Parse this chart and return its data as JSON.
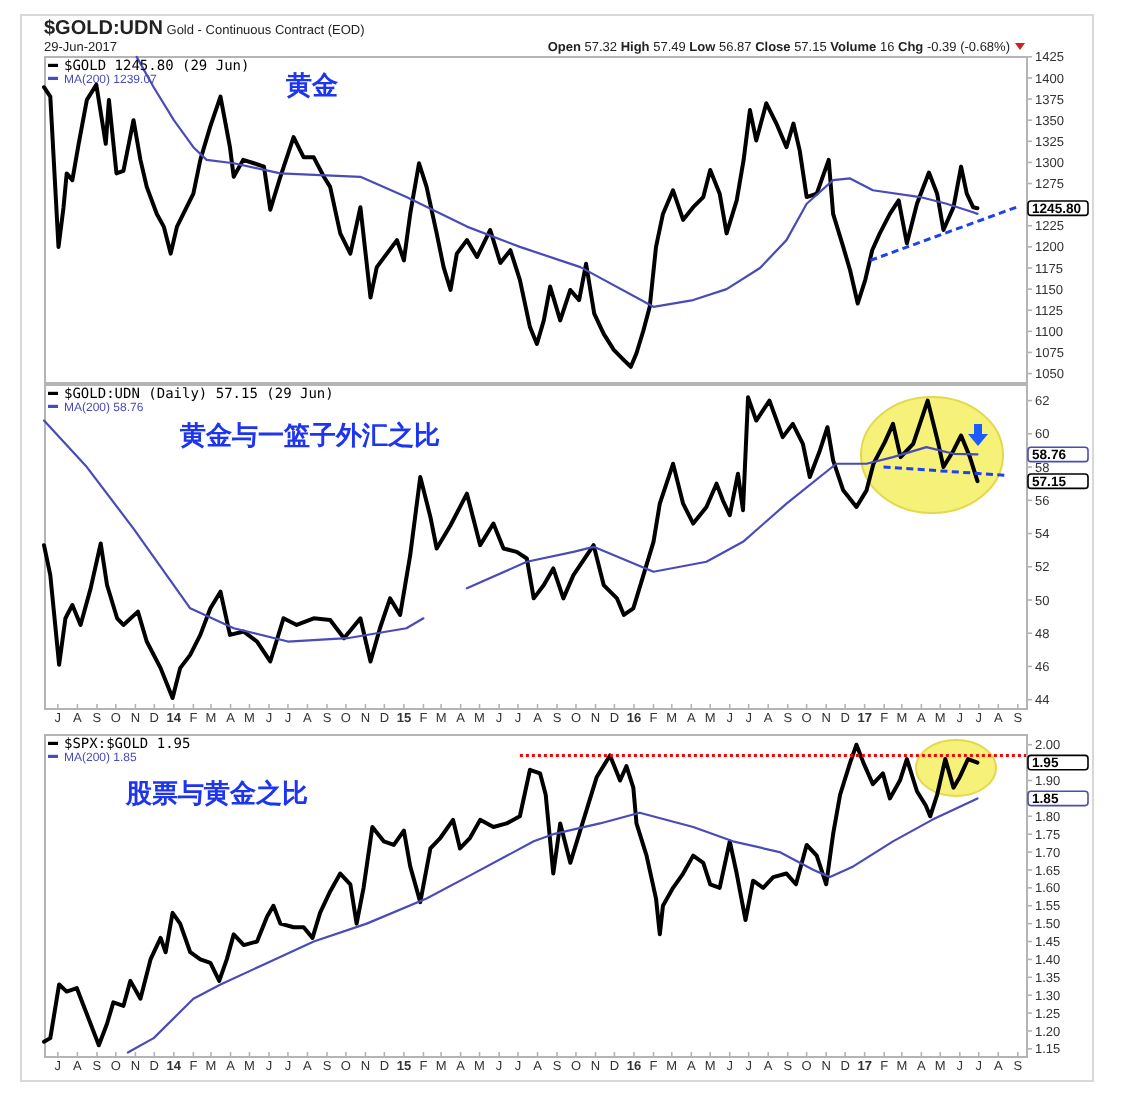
{
  "chart_data": [
    {
      "type": "line",
      "title": "黄金",
      "xlim": [
        "2013-06-09",
        "2017-09-14"
      ],
      "ylim": [
        1040,
        1426
      ],
      "yticks": [
        1050,
        1075,
        1100,
        1125,
        1150,
        1175,
        1200,
        1225,
        {
          "value": 1250,
          "label": null
        },
        1275,
        1300,
        1325,
        1350,
        1375,
        1400,
        1425
      ],
      "tick_labels": "y",
      "legend": "top left",
      "annotations": [
        "**$GOLD:UDN** Gold - Continuous Contract (EOD)",
        "29-Jun-2017",
        "**Open** 57.32 **High** 57.49 **Low** 56.87 **Close** 57.15 **Volume** 16 **Chg** -0.39 (-0.68%)",
        "1245.80"
      ],
      "series": [
        {
          "name": "$GOLD 1245.80 (29 Jun)",
          "color": "#000000",
          "x": [
            "2013-06-09",
            "2013-06-19",
            "2013-07-02",
            "2013-07-10",
            "2013-07-15",
            "2013-07-24",
            "2013-08-03",
            "2013-08-16",
            "2013-08-31",
            "2013-09-15",
            "2013-09-20",
            "2013-10-02",
            "2013-10-13",
            "2013-10-29",
            "2013-11-09",
            "2013-11-19",
            "2013-12-05",
            "2013-12-16",
            "2013-12-27",
            "2014-01-06",
            "2014-01-16",
            "2014-02-01",
            "2014-02-12",
            "2014-02-28",
            "2014-03-16",
            "2014-03-31",
            "2014-04-06",
            "2014-04-21",
            "2014-05-08",
            "2014-05-24",
            "2014-06-03",
            "2014-06-19",
            "2014-07-10",
            "2014-07-26",
            "2014-08-11",
            "2014-08-27",
            "2014-09-06",
            "2014-09-22",
            "2014-10-08",
            "2014-10-24",
            "2014-11-09",
            "2014-11-19",
            "2014-12-05",
            "2014-12-21",
            "2015-01-01",
            "2015-01-11",
            "2015-01-25",
            "2015-02-06",
            "2015-02-22",
            "2015-03-05",
            "2015-03-16",
            "2015-03-26",
            "2015-04-11",
            "2015-04-27",
            "2015-05-18",
            "2015-06-03",
            "2015-06-19",
            "2015-07-04",
            "2015-07-20",
            "2015-07-31",
            "2015-08-11",
            "2015-08-21",
            "2015-09-06",
            "2015-09-22",
            "2015-10-06",
            "2015-10-17",
            "2015-10-30",
            "2015-11-14",
            "2015-11-30",
            "2015-12-16",
            "2015-12-27",
            "2016-01-05",
            "2016-01-16",
            "2016-01-26",
            "2016-02-05",
            "2016-02-16",
            "2016-03-03",
            "2016-03-19",
            "2016-04-04",
            "2016-04-20",
            "2016-05-01",
            "2016-05-16",
            "2016-05-27",
            "2016-06-12",
            "2016-06-23",
            "2016-07-03",
            "2016-07-13",
            "2016-07-29",
            "2016-08-14",
            "2016-08-30",
            "2016-09-10",
            "2016-09-20",
            "2016-10-01",
            "2016-10-17",
            "2016-11-05",
            "2016-11-12",
            "2016-11-28",
            "2016-12-09",
            "2016-12-21",
            "2017-01-02",
            "2017-01-13",
            "2017-01-25",
            "2017-02-10",
            "2017-02-24",
            "2017-03-09",
            "2017-03-25",
            "2017-04-13",
            "2017-04-26",
            "2017-05-06",
            "2017-05-22",
            "2017-06-03",
            "2017-06-12",
            "2017-06-22",
            "2017-06-29"
          ],
          "values": [
            1389,
            1378,
            1200,
            1247,
            1287,
            1279,
            1322,
            1374,
            1392,
            1322,
            1374,
            1287,
            1290,
            1350,
            1303,
            1271,
            1239,
            1224,
            1192,
            1224,
            1239,
            1263,
            1303,
            1343,
            1378,
            1318,
            1283,
            1303,
            1299,
            1295,
            1244,
            1283,
            1330,
            1306,
            1306,
            1283,
            1271,
            1216,
            1192,
            1247,
            1140,
            1176,
            1192,
            1208,
            1184,
            1239,
            1299,
            1271,
            1216,
            1176,
            1149,
            1192,
            1208,
            1188,
            1220,
            1181,
            1196,
            1161,
            1105,
            1085,
            1113,
            1153,
            1113,
            1149,
            1137,
            1180,
            1121,
            1097,
            1078,
            1066,
            1058,
            1074,
            1101,
            1129,
            1200,
            1239,
            1267,
            1232,
            1247,
            1259,
            1291,
            1263,
            1216,
            1255,
            1303,
            1362,
            1326,
            1370,
            1346,
            1318,
            1346,
            1314,
            1259,
            1263,
            1303,
            1239,
            1200,
            1172,
            1133,
            1161,
            1196,
            1216,
            1239,
            1255,
            1204,
            1251,
            1288,
            1263,
            1220,
            1247,
            1295,
            1263,
            1247,
            1245.8
          ]
        },
        {
          "name": "MA(200) 1239.07",
          "color": "#4a4ab8",
          "x": [
            "2013-11-03",
            "2013-11-30",
            "2014-01-01",
            "2014-02-01",
            "2014-02-22",
            "2014-04-06",
            "2014-06-19",
            "2014-10-24",
            "2015-01-05",
            "2015-04-11",
            "2015-07-04",
            "2015-09-06",
            "2015-10-08",
            "2016-02-01",
            "2016-04-04",
            "2016-05-27",
            "2016-07-19",
            "2016-08-30",
            "2016-10-01",
            "2016-11-12",
            "2016-12-09",
            "2017-01-14",
            "2017-03-30",
            "2017-05-11",
            "2017-06-22",
            "2017-06-29"
          ],
          "values": [
            1425,
            1389,
            1350,
            1318,
            1303,
            1299,
            1287,
            1283,
            1259,
            1224,
            1200,
            1184,
            1176,
            1129,
            1137,
            1150,
            1175,
            1208,
            1251,
            1279,
            1281,
            1267,
            1259,
            1251,
            1241,
            1239.07
          ]
        },
        {
          "color": "#1f3ff0",
          "line_style": "dashed",
          "x": [
            "2017-01-10",
            "2017-08-30"
          ],
          "values": [
            1184,
            1247
          ]
        }
      ]
    },
    {
      "type": "line",
      "title": "黄金与一篮子外汇之比",
      "xlim": [
        "2013-06-09",
        "2017-09-14"
      ],
      "ylim": [
        43.5,
        63
      ],
      "yticks": [
        44,
        46,
        48,
        50,
        52,
        54,
        56,
        58,
        60,
        62
      ],
      "legend": "top left",
      "xticks": [
        {
          "value": "2013-07",
          "label": "J"
        },
        {
          "value": "2013-08",
          "label": "A"
        },
        {
          "value": "2013-09",
          "label": "S"
        },
        {
          "value": "2013-10",
          "label": "O"
        },
        {
          "value": "2013-11",
          "label": "N"
        },
        {
          "value": "2013-12",
          "label": "D"
        },
        {
          "value": "2014-01",
          "label": "14"
        },
        {
          "value": "2014-02",
          "label": "F"
        },
        {
          "value": "2014-03",
          "label": "M"
        },
        {
          "value": "2014-04",
          "label": "A"
        },
        {
          "value": "2014-05",
          "label": "M"
        },
        {
          "value": "2014-06",
          "label": "J"
        },
        {
          "value": "2014-07",
          "label": "J"
        },
        {
          "value": "2014-08",
          "label": "A"
        },
        {
          "value": "2014-09",
          "label": "S"
        },
        {
          "value": "2014-10",
          "label": "O"
        },
        {
          "value": "2014-11",
          "label": "N"
        },
        {
          "value": "2014-12",
          "label": "D"
        },
        {
          "value": "2015-01",
          "label": "15"
        },
        {
          "value": "2015-02",
          "label": "F"
        },
        {
          "value": "2015-03",
          "label": "M"
        },
        {
          "value": "2015-04",
          "label": "A"
        },
        {
          "value": "2015-05",
          "label": "M"
        },
        {
          "value": "2015-06",
          "label": "J"
        },
        {
          "value": "2015-07",
          "label": "J"
        },
        {
          "value": "2015-08",
          "label": "A"
        },
        {
          "value": "2015-09",
          "label": "S"
        },
        {
          "value": "2015-10",
          "label": "O"
        },
        {
          "value": "2015-11",
          "label": "N"
        },
        {
          "value": "2015-12",
          "label": "D"
        },
        {
          "value": "2016-01",
          "label": "16"
        },
        {
          "value": "2016-02",
          "label": "F"
        },
        {
          "value": "2016-03",
          "label": "M"
        },
        {
          "value": "2016-04",
          "label": "A"
        },
        {
          "value": "2016-05",
          "label": "M"
        },
        {
          "value": "2016-06",
          "label": "J"
        },
        {
          "value": "2016-07",
          "label": "J"
        },
        {
          "value": "2016-08",
          "label": "A"
        },
        {
          "value": "2016-09",
          "label": "S"
        },
        {
          "value": "2016-10",
          "label": "O"
        },
        {
          "value": "2016-11",
          "label": "N"
        },
        {
          "value": "2016-12",
          "label": "D"
        },
        {
          "value": "2017-01",
          "label": "17"
        },
        {
          "value": "2017-02",
          "label": "F"
        },
        {
          "value": "2017-03",
          "label": "M"
        },
        {
          "value": "2017-04",
          "label": "A"
        },
        {
          "value": "2017-05",
          "label": "M"
        },
        {
          "value": "2017-06",
          "label": "J"
        },
        {
          "value": "2017-07",
          "label": "J"
        },
        {
          "value": "2017-08",
          "label": "A"
        },
        {
          "value": "2017-09",
          "label": "S"
        }
      ],
      "annotations": [
        "58.76",
        "57.15"
      ],
      "series": [
        {
          "name": "$GOLD:UDN (Daily) 57.15 (29 Jun)",
          "color": "#000000",
          "x": [
            "2013-06-09",
            "2013-06-19",
            "2013-07-03",
            "2013-07-13",
            "2013-07-24",
            "2013-08-06",
            "2013-08-22",
            "2013-09-07",
            "2013-09-17",
            "2013-10-03",
            "2013-10-13",
            "2013-11-05",
            "2013-11-19",
            "2013-12-11",
            "2013-12-30",
            "2014-01-11",
            "2014-01-27",
            "2014-02-12",
            "2014-02-28",
            "2014-03-16",
            "2014-03-31",
            "2014-04-22",
            "2014-05-13",
            "2014-06-03",
            "2014-06-24",
            "2014-07-15",
            "2014-08-11",
            "2014-09-06",
            "2014-09-28",
            "2014-10-24",
            "2014-11-09",
            "2014-11-24",
            "2014-12-10",
            "2014-12-26",
            "2015-01-11",
            "2015-01-27",
            "2015-02-12",
            "2015-02-22",
            "2015-03-16",
            "2015-04-11",
            "2015-05-02",
            "2015-05-23",
            "2015-06-08",
            "2015-06-29",
            "2015-07-15",
            "2015-07-26",
            "2015-08-11",
            "2015-08-26",
            "2015-09-11",
            "2015-09-27",
            "2015-10-29",
            "2015-11-14",
            "2015-12-05",
            "2015-12-16",
            "2015-12-31",
            "2016-01-16",
            "2016-02-01",
            "2016-02-11",
            "2016-03-03",
            "2016-03-19",
            "2016-04-04",
            "2016-04-25",
            "2016-05-11",
            "2016-05-21",
            "2016-06-01",
            "2016-06-14",
            "2016-06-22",
            "2016-06-30",
            "2016-07-13",
            "2016-08-03",
            "2016-08-24",
            "2016-09-09",
            "2016-09-25",
            "2016-10-06",
            "2016-10-22",
            "2016-11-03",
            "2016-11-12",
            "2016-11-28",
            "2016-12-19",
            "2017-01-04",
            "2017-01-15",
            "2017-02-02",
            "2017-02-15",
            "2017-02-27",
            "2017-03-19",
            "2017-04-11",
            "2017-04-28",
            "2017-05-06",
            "2017-05-22",
            "2017-06-03",
            "2017-06-17",
            "2017-06-29"
          ],
          "values": [
            53.3,
            51.5,
            46.1,
            48.9,
            49.7,
            48.5,
            50.7,
            53.4,
            50.9,
            48.9,
            48.5,
            49.3,
            47.5,
            45.9,
            44.1,
            45.9,
            46.7,
            47.9,
            49.5,
            50.5,
            47.9,
            48.1,
            47.5,
            46.3,
            48.9,
            48.5,
            48.9,
            48.8,
            47.7,
            48.9,
            46.3,
            48.3,
            50.1,
            49.1,
            52.7,
            57.4,
            55.0,
            53.1,
            54.5,
            56.4,
            53.3,
            54.6,
            53.1,
            52.9,
            52.5,
            50.1,
            50.9,
            51.9,
            50.1,
            51.5,
            53.3,
            50.9,
            50.1,
            49.1,
            49.5,
            51.5,
            53.5,
            55.8,
            58.2,
            55.8,
            54.6,
            55.6,
            57.0,
            56.0,
            55.1,
            57.6,
            55.4,
            62.2,
            60.8,
            62.0,
            59.8,
            60.6,
            59.4,
            57.4,
            59.0,
            60.4,
            58.4,
            56.6,
            55.6,
            56.6,
            58.2,
            59.5,
            60.6,
            58.6,
            59.4,
            62.0,
            59.4,
            58.0,
            59.0,
            59.9,
            58.6,
            57.15
          ]
        },
        {
          "name": "MA(200) 58.76",
          "color": "#4a4ab8",
          "x": [
            "2015-04-11",
            "2015-07-15",
            "2015-09-27",
            "2015-10-29",
            "2016-02-01",
            "2016-04-25",
            "2016-06-22",
            "2016-08-30",
            "2016-11-17",
            "2017-01-04",
            "2017-02-15",
            "2017-04-09",
            "2017-05-22",
            "2017-06-29"
          ],
          "values": [
            50.7,
            52.3,
            52.9,
            53.2,
            51.7,
            52.3,
            53.5,
            55.8,
            58.2,
            58.2,
            58.6,
            59.2,
            58.8,
            58.76
          ]
        },
        {
          "color": "#4a4ab8",
          "x": [
            "2013-06-09",
            "2013-08-16",
            "2013-10-29",
            "2014-01-27",
            "2014-04-06",
            "2014-07-01",
            "2014-10-03",
            "2015-01-05",
            "2015-02-01"
          ],
          "values": [
            60.8,
            58.0,
            54.3,
            49.5,
            48.3,
            47.5,
            47.7,
            48.3,
            48.9
          ]
        },
        {
          "color": "#1f3ff0",
          "line_style": "dashed",
          "x": [
            "2017-01-31",
            "2017-08-16"
          ],
          "values": [
            58.0,
            57.5
          ]
        }
      ]
    },
    {
      "type": "line",
      "title": "股票与黄金之比",
      "xlim": [
        "2013-06-09",
        "2017-09-14"
      ],
      "ylim": [
        1.13,
        2.03
      ],
      "yticks": [
        1.15,
        {
          "value": 1.2,
          "label": "1.20"
        },
        1.25,
        {
          "value": 1.3,
          "label": "1.30"
        },
        1.35,
        {
          "value": 1.4,
          "label": "1.40"
        },
        1.45,
        {
          "value": 1.5,
          "label": "1.50"
        },
        1.55,
        {
          "value": 1.6,
          "label": "1.60"
        },
        1.65,
        {
          "value": 1.7,
          "label": "1.70"
        },
        1.75,
        {
          "value": 1.8,
          "label": "1.80"
        },
        {
          "value": 1.85,
          "label": null
        },
        {
          "value": 1.9,
          "label": "1.90"
        },
        {
          "value": 1.95,
          "label": null
        },
        {
          "value": 2,
          "label": "2.00"
        }
      ],
      "legend": "top left",
      "xticks": [
        {
          "value": "2013-07",
          "label": "J"
        },
        {
          "value": "2013-08",
          "label": "A"
        },
        {
          "value": "2013-09",
          "label": "S"
        },
        {
          "value": "2013-10",
          "label": "O"
        },
        {
          "value": "2013-11",
          "label": "N"
        },
        {
          "value": "2013-12",
          "label": "D"
        },
        {
          "value": "2014-01",
          "label": "14"
        },
        {
          "value": "2014-02",
          "label": "F"
        },
        {
          "value": "2014-03",
          "label": "M"
        },
        {
          "value": "2014-04",
          "label": "A"
        },
        {
          "value": "2014-05",
          "label": "M"
        },
        {
          "value": "2014-06",
          "label": "J"
        },
        {
          "value": "2014-07",
          "label": "J"
        },
        {
          "value": "2014-08",
          "label": "A"
        },
        {
          "value": "2014-09",
          "label": "S"
        },
        {
          "value": "2014-10",
          "label": "O"
        },
        {
          "value": "2014-11",
          "label": "N"
        },
        {
          "value": "2014-12",
          "label": "D"
        },
        {
          "value": "2015-01",
          "label": "15"
        },
        {
          "value": "2015-02",
          "label": "F"
        },
        {
          "value": "2015-03",
          "label": "M"
        },
        {
          "value": "2015-04",
          "label": "A"
        },
        {
          "value": "2015-05",
          "label": "M"
        },
        {
          "value": "2015-06",
          "label": "J"
        },
        {
          "value": "2015-07",
          "label": "J"
        },
        {
          "value": "2015-08",
          "label": "A"
        },
        {
          "value": "2015-09",
          "label": "S"
        },
        {
          "value": "2015-10",
          "label": "O"
        },
        {
          "value": "2015-11",
          "label": "N"
        },
        {
          "value": "2015-12",
          "label": "D"
        },
        {
          "value": "2016-01",
          "label": "16"
        },
        {
          "value": "2016-02",
          "label": "F"
        },
        {
          "value": "2016-03",
          "label": "M"
        },
        {
          "value": "2016-04",
          "label": "A"
        },
        {
          "value": "2016-05",
          "label": "M"
        },
        {
          "value": "2016-06",
          "label": "J"
        },
        {
          "value": "2016-07",
          "label": "J"
        },
        {
          "value": "2016-08",
          "label": "A"
        },
        {
          "value": "2016-09",
          "label": "S"
        },
        {
          "value": "2016-10",
          "label": "O"
        },
        {
          "value": "2016-11",
          "label": "N"
        },
        {
          "value": "2016-12",
          "label": "D"
        },
        {
          "value": "2017-01",
          "label": "17"
        },
        {
          "value": "2017-02",
          "label": "F"
        },
        {
          "value": "2017-03",
          "label": "M"
        },
        {
          "value": "2017-04",
          "label": "A"
        },
        {
          "value": "2017-05",
          "label": "M"
        },
        {
          "value": "2017-06",
          "label": "J"
        },
        {
          "value": "2017-07",
          "label": "J"
        },
        {
          "value": "2017-08",
          "label": "A"
        },
        {
          "value": "2017-09",
          "label": "S"
        }
      ],
      "annotations": [
        "1.95",
        "1.85"
      ],
      "series": [
        {
          "name": "$SPX:$GOLD 1.95",
          "color": "#000000",
          "x": [
            "2013-06-09",
            "2013-06-19",
            "2013-07-03",
            "2013-07-15",
            "2013-07-31",
            "2013-08-11",
            "2013-09-04",
            "2013-09-17",
            "2013-09-27",
            "2013-10-13",
            "2013-10-24",
            "2013-11-09",
            "2013-11-25",
            "2013-12-11",
            "2013-12-19",
            "2013-12-30",
            "2014-01-11",
            "2014-01-27",
            "2014-02-12",
            "2014-02-28",
            "2014-03-14",
            "2014-03-26",
            "2014-04-06",
            "2014-04-22",
            "2014-05-13",
            "2014-05-29",
            "2014-06-08",
            "2014-06-19",
            "2014-07-10",
            "2014-07-26",
            "2014-08-09",
            "2014-08-21",
            "2014-09-06",
            "2014-09-22",
            "2014-10-08",
            "2014-10-18",
            "2014-10-29",
            "2014-11-12",
            "2014-11-30",
            "2014-12-16",
            "2015-01-01",
            "2015-01-11",
            "2015-01-27",
            "2015-02-12",
            "2015-02-28",
            "2015-03-20",
            "2015-03-31",
            "2015-04-16",
            "2015-05-02",
            "2015-05-23",
            "2015-06-13",
            "2015-07-04",
            "2015-07-20",
            "2015-08-05",
            "2015-08-14",
            "2015-08-26",
            "2015-09-06",
            "2015-09-22",
            "2015-10-06",
            "2015-11-03",
            "2015-11-24",
            "2015-12-10",
            "2015-12-20",
            "2015-12-31",
            "2016-01-05",
            "2016-01-21",
            "2016-02-05",
            "2016-02-11",
            "2016-02-16",
            "2016-03-03",
            "2016-03-19",
            "2016-04-04",
            "2016-04-20",
            "2016-05-01",
            "2016-05-16",
            "2016-06-01",
            "2016-06-12",
            "2016-06-26",
            "2016-07-08",
            "2016-07-24",
            "2016-08-09",
            "2016-08-30",
            "2016-09-14",
            "2016-10-01",
            "2016-10-17",
            "2016-11-01",
            "2016-11-12",
            "2016-11-23",
            "2016-12-09",
            "2016-12-19",
            "2016-12-30",
            "2017-01-14",
            "2017-01-30",
            "2017-02-10",
            "2017-02-26",
            "2017-03-09",
            "2017-03-25",
            "2017-04-08",
            "2017-04-15",
            "2017-04-26",
            "2017-05-09",
            "2017-05-22",
            "2017-06-01",
            "2017-06-14",
            "2017-06-29"
          ],
          "values": [
            1.17,
            1.18,
            1.33,
            1.31,
            1.32,
            1.27,
            1.16,
            1.22,
            1.28,
            1.27,
            1.34,
            1.29,
            1.4,
            1.46,
            1.42,
            1.53,
            1.5,
            1.42,
            1.4,
            1.39,
            1.34,
            1.4,
            1.47,
            1.44,
            1.45,
            1.52,
            1.55,
            1.5,
            1.49,
            1.49,
            1.46,
            1.53,
            1.59,
            1.64,
            1.61,
            1.5,
            1.6,
            1.77,
            1.73,
            1.72,
            1.76,
            1.66,
            1.56,
            1.71,
            1.74,
            1.79,
            1.71,
            1.74,
            1.79,
            1.77,
            1.78,
            1.8,
            1.93,
            1.92,
            1.86,
            1.64,
            1.78,
            1.67,
            1.75,
            1.91,
            1.97,
            1.9,
            1.94,
            1.88,
            1.78,
            1.69,
            1.57,
            1.47,
            1.55,
            1.6,
            1.64,
            1.69,
            1.67,
            1.61,
            1.6,
            1.73,
            1.64,
            1.51,
            1.62,
            1.6,
            1.63,
            1.64,
            1.61,
            1.72,
            1.69,
            1.61,
            1.75,
            1.86,
            1.95,
            2.0,
            1.95,
            1.89,
            1.92,
            1.85,
            1.9,
            1.96,
            1.87,
            1.83,
            1.8,
            1.86,
            1.96,
            1.88,
            1.91,
            1.96,
            1.95
          ]
        },
        {
          "name": "MA(200) 1.85",
          "color": "#4a4ab8",
          "x": [
            "2013-10-20",
            "2013-11-30",
            "2014-02-01",
            "2014-03-16",
            "2014-05-29",
            "2014-08-11",
            "2014-11-03",
            "2015-02-06",
            "2015-04-11",
            "2015-07-26",
            "2015-08-26",
            "2015-11-08",
            "2016-01-10",
            "2016-04-04",
            "2016-06-06",
            "2016-08-19",
            "2016-10-12",
            "2016-11-07",
            "2016-12-14",
            "2017-02-15",
            "2017-04-18",
            "2017-06-29"
          ],
          "values": [
            1.14,
            1.18,
            1.29,
            1.33,
            1.39,
            1.45,
            1.5,
            1.57,
            1.63,
            1.73,
            1.75,
            1.78,
            1.81,
            1.77,
            1.73,
            1.7,
            1.65,
            1.63,
            1.66,
            1.73,
            1.79,
            1.85
          ]
        },
        {
          "color": "#ff0000",
          "line_style": "dotted",
          "x": [
            "2015-07-04",
            "2017-09-14"
          ],
          "values": [
            1.97,
            1.97
          ]
        }
      ]
    }
  ]
}
